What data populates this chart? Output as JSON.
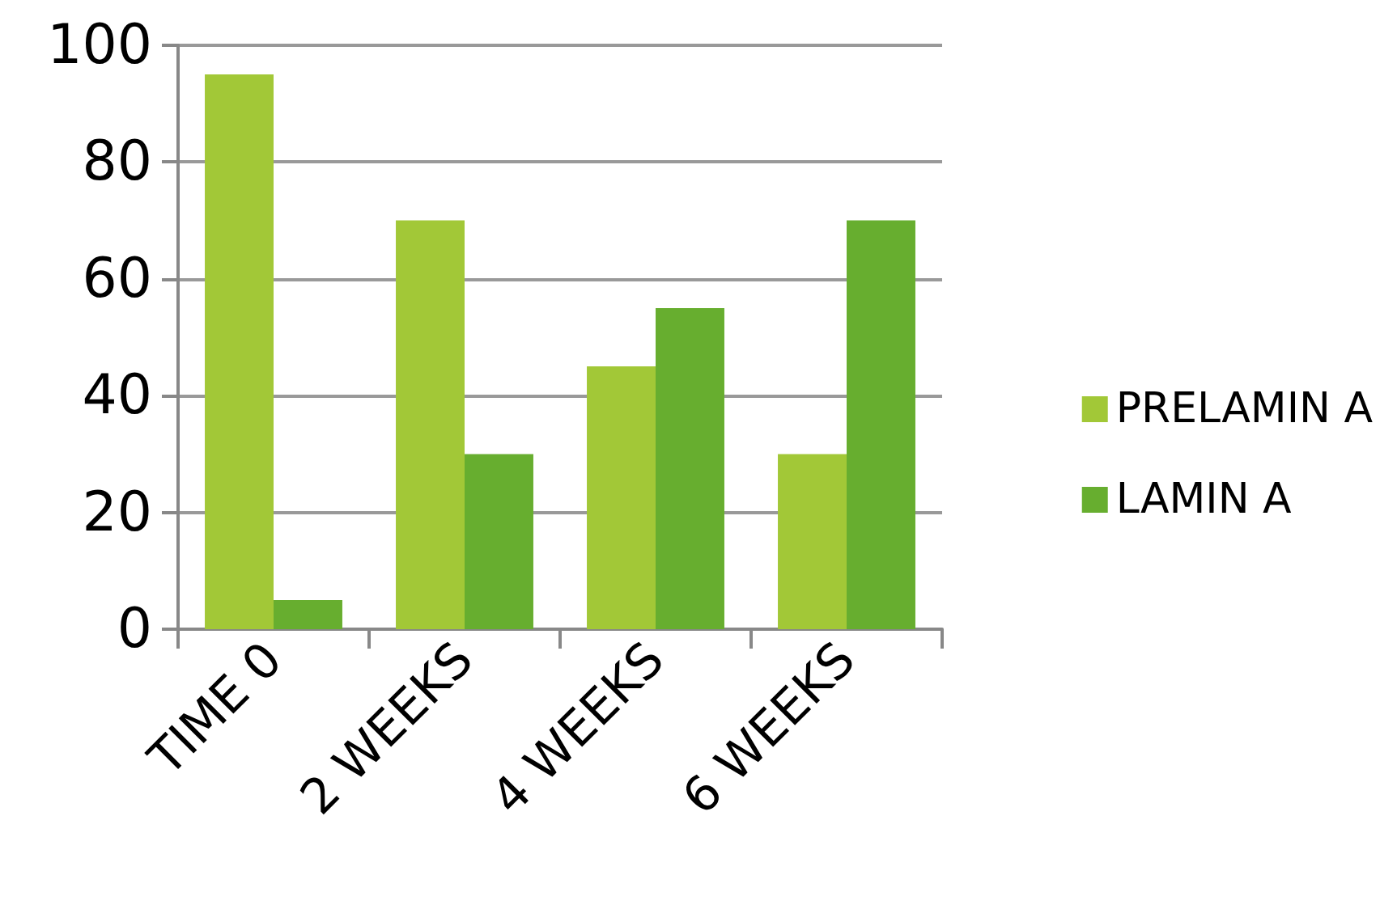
{
  "chart_data": {
    "type": "bar",
    "categories": [
      "TIME 0",
      "2 WEEKS",
      "4 WEEKS",
      "6 WEEKS"
    ],
    "series": [
      {
        "name": "PRELAMIN A",
        "color": "#a2c837",
        "values": [
          95,
          70,
          45,
          30
        ]
      },
      {
        "name": "LAMIN A",
        "color": "#67ae2f",
        "values": [
          5,
          30,
          55,
          70
        ]
      }
    ],
    "ylim": [
      0,
      100
    ],
    "yticks": [
      0,
      20,
      40,
      60,
      80,
      100
    ],
    "grid": "y",
    "legend": "right"
  }
}
